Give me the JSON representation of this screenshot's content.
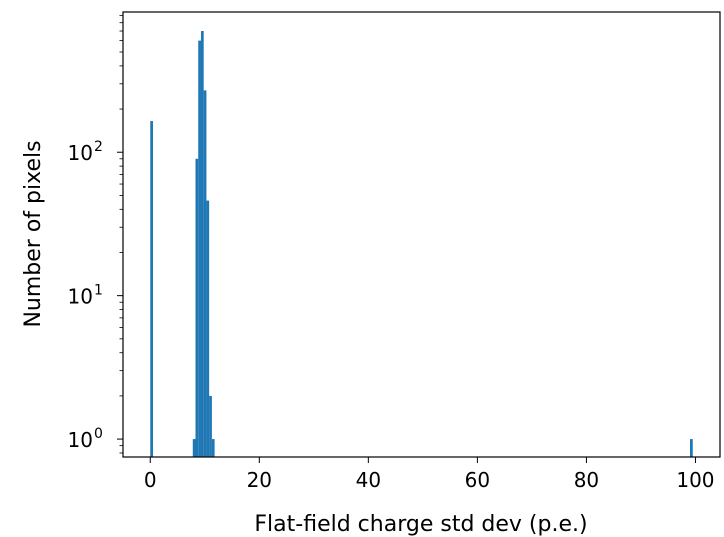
{
  "chart_data": {
    "type": "bar",
    "title": "",
    "xlabel": "Flat-field charge std dev (p.e.)",
    "ylabel": "Number of pixels",
    "xlim": [
      -5,
      104.5
    ],
    "ylim": [
      0.75,
      950
    ],
    "yscale": "log",
    "grid": false,
    "bar_color": "#1f77b4",
    "bin_width": 0.5,
    "x_ticks": [
      0,
      20,
      40,
      60,
      80,
      100
    ],
    "x_tick_labels": [
      "0",
      "20",
      "40",
      "60",
      "80",
      "100"
    ],
    "y_ticks": [
      {
        "value": 1,
        "base": "10",
        "exp": "0"
      },
      {
        "value": 10,
        "base": "10",
        "exp": "1"
      },
      {
        "value": 100,
        "base": "10",
        "exp": "2"
      }
    ],
    "bins": [
      {
        "x": 0.0,
        "count": 165
      },
      {
        "x": 7.8,
        "count": 1
      },
      {
        "x": 8.3,
        "count": 90
      },
      {
        "x": 8.8,
        "count": 600
      },
      {
        "x": 9.3,
        "count": 700
      },
      {
        "x": 9.8,
        "count": 270
      },
      {
        "x": 10.3,
        "count": 46
      },
      {
        "x": 10.8,
        "count": 2
      },
      {
        "x": 11.3,
        "count": 1
      },
      {
        "x": 99.0,
        "count": 1
      }
    ]
  }
}
